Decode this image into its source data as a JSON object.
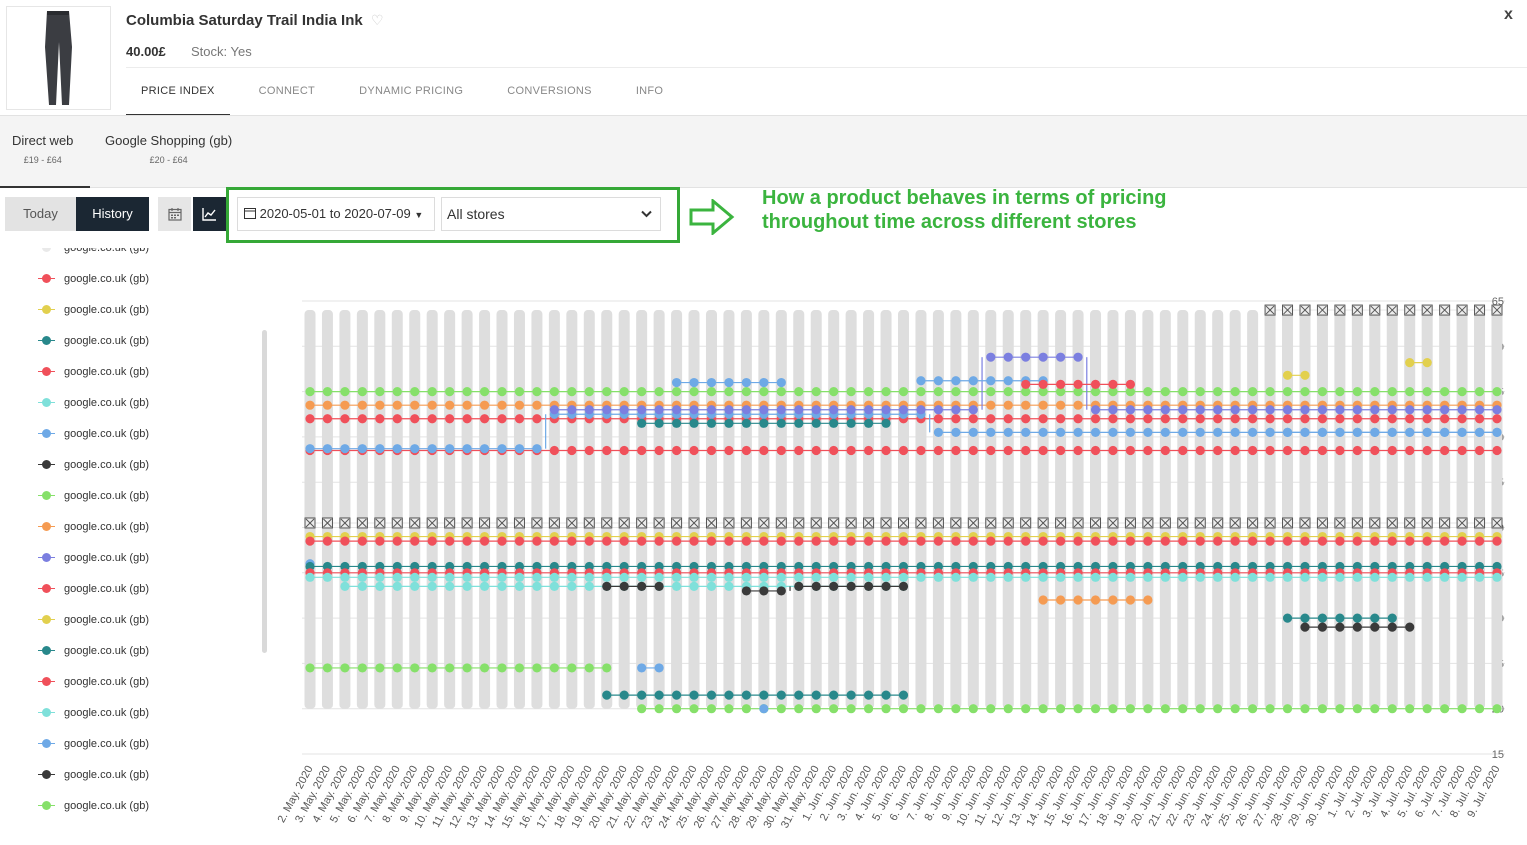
{
  "product": {
    "title": "Columbia Saturday Trail India Ink",
    "price": "40.00£",
    "stock": "Stock: Yes",
    "close_label": "x"
  },
  "tabs": [
    "PRICE INDEX",
    "CONNECT",
    "DYNAMIC PRICING",
    "CONVERSIONS",
    "INFO"
  ],
  "channels": [
    {
      "name": "Direct web",
      "range": "£19 - £64"
    },
    {
      "name": "Google Shopping (gb)",
      "range": "£20 - £64"
    }
  ],
  "controls": {
    "today_label": "Today",
    "history_label": "History",
    "date_range": "2020-05-01 to 2020-07-09",
    "store_filter": "All stores"
  },
  "annotation": {
    "line1": "How a product behaves in terms of pricing",
    "line2": "throughout time across different stores"
  },
  "legend": {
    "items": [
      {
        "label": "google.co.uk (gb)",
        "color": "#e9e9e9"
      },
      {
        "label": "google.co.uk (gb)",
        "color": "#f0505a"
      },
      {
        "label": "google.co.uk (gb)",
        "color": "#e2d04e"
      },
      {
        "label": "google.co.uk (gb)",
        "color": "#28888b"
      },
      {
        "label": "google.co.uk (gb)",
        "color": "#f0505a"
      },
      {
        "label": "google.co.uk (gb)",
        "color": "#7fe0da"
      },
      {
        "label": "google.co.uk (gb)",
        "color": "#6ea9e6"
      },
      {
        "label": "google.co.uk (gb)",
        "color": "#3a3a3a"
      },
      {
        "label": "google.co.uk (gb)",
        "color": "#86e06a"
      },
      {
        "label": "google.co.uk (gb)",
        "color": "#f59b52"
      },
      {
        "label": "google.co.uk (gb)",
        "color": "#7b7fe0"
      },
      {
        "label": "google.co.uk (gb)",
        "color": "#f0505a"
      },
      {
        "label": "google.co.uk (gb)",
        "color": "#e2d04e"
      },
      {
        "label": "google.co.uk (gb)",
        "color": "#28888b"
      },
      {
        "label": "google.co.uk (gb)",
        "color": "#f0505a"
      },
      {
        "label": "google.co.uk (gb)",
        "color": "#7fe0da"
      },
      {
        "label": "google.co.uk (gb)",
        "color": "#6ea9e6"
      },
      {
        "label": "google.co.uk (gb)",
        "color": "#3a3a3a"
      },
      {
        "label": "google.co.uk (gb)",
        "color": "#86e06a"
      }
    ]
  },
  "chart_data": {
    "type": "line",
    "y_ticks": [
      15,
      20,
      25,
      30,
      35,
      40,
      45,
      50,
      55,
      60,
      65
    ],
    "ylim": [
      15,
      65
    ],
    "x": [
      "2. May. 2020",
      "3. May. 2020",
      "4. May. 2020",
      "5. May. 2020",
      "6. May. 2020",
      "7. May. 2020",
      "8. May. 2020",
      "9. May. 2020",
      "10. May. 2020",
      "11. May. 2020",
      "12. May. 2020",
      "13. May. 2020",
      "14. May. 2020",
      "15. May. 2020",
      "16. May. 2020",
      "17. May. 2020",
      "18. May. 2020",
      "19. May. 2020",
      "20. May. 2020",
      "21. May. 2020",
      "22. May. 2020",
      "23. May. 2020",
      "24. May. 2020",
      "25. May. 2020",
      "26. May. 2020",
      "27. May. 2020",
      "28. May. 2020",
      "29. May. 2020",
      "30. May. 2020",
      "31. May. 2020",
      "1. Jun. 2020",
      "2. Jun. 2020",
      "3. Jun. 2020",
      "4. Jun. 2020",
      "5. Jun. 2020",
      "6. Jun. 2020",
      "7. Jun. 2020",
      "8. Jun. 2020",
      "9. Jun. 2020",
      "10. Jun. 2020",
      "11. Jun. 2020",
      "12. Jun. 2020",
      "13. Jun. 2020",
      "14. Jun. 2020",
      "15. Jun. 2020",
      "16. Jun. 2020",
      "17. Jun. 2020",
      "18. Jun. 2020",
      "19. Jun. 2020",
      "20. Jun. 2020",
      "21. Jun. 2020",
      "22. Jun. 2020",
      "23. Jun. 2020",
      "24. Jun. 2020",
      "25. Jun. 2020",
      "26. Jun. 2020",
      "27. Jun. 2020",
      "28. Jun. 2020",
      "29. Jun. 2020",
      "30. Jun. 2020",
      "1. Jul. 2020",
      "2. Jul. 2020",
      "3. Jul. 2020",
      "4. Jul. 2020",
      "5. Jul. 2020",
      "6. Jul. 2020",
      "7. Jul. 2020",
      "8. Jul. 2020",
      "9. Jul. 2020"
    ],
    "range_band": {
      "color": "#dedede",
      "low": 20,
      "high": 64
    },
    "series": [
      {
        "color": "#86e06a",
        "segments": [
          {
            "from": 0,
            "to": 68,
            "value": 55
          }
        ]
      },
      {
        "color": "#f59b52",
        "segments": [
          {
            "from": 0,
            "to": 68,
            "value": 53.5
          }
        ]
      },
      {
        "color": "#f0505a",
        "segments": [
          {
            "from": 0,
            "to": 68,
            "value": 52
          }
        ]
      },
      {
        "color": "#f0505a",
        "segments": [
          {
            "from": 0,
            "to": 68,
            "value": 48.5
          }
        ]
      },
      {
        "color": "#6ea9e6",
        "segments": [
          {
            "from": 0,
            "to": 13,
            "value": 48.7
          },
          {
            "from": 14,
            "to": 35,
            "value": 52.5
          },
          {
            "from": 36,
            "to": 68,
            "value": 50.5
          }
        ]
      },
      {
        "color": "#7b7fe0",
        "segments": [
          {
            "from": 14,
            "to": 38,
            "value": 53
          },
          {
            "from": 39,
            "to": 44,
            "value": 58.8
          },
          {
            "from": 45,
            "to": 68,
            "value": 53
          }
        ]
      },
      {
        "color": "#28888b",
        "segments": [
          {
            "from": 19,
            "to": 33,
            "value": 51.5
          }
        ]
      },
      {
        "color": "#6ea9e6",
        "segments": [
          {
            "from": 21,
            "to": 27,
            "value": 56
          },
          {
            "from": 35,
            "to": 42,
            "value": 56.2
          },
          {
            "from": 55,
            "to": 68,
            "value": 50.5
          }
        ]
      },
      {
        "color": "#f0505a",
        "segments": [
          {
            "from": 41,
            "to": 47,
            "value": 55.8
          }
        ]
      },
      {
        "color": "#6ea9e6",
        "segments": [
          {
            "from": 0,
            "to": 0,
            "value": 36
          },
          {
            "from": 55,
            "to": 55,
            "value": 64
          }
        ]
      },
      {
        "color": "#e9e9e9",
        "segments": [
          {
            "from": 0,
            "to": 68,
            "value": 40.5
          },
          {
            "from": 55,
            "to": 68,
            "value": 64
          }
        ]
      },
      {
        "color": "#e2d04e",
        "segments": [
          {
            "from": 0,
            "to": 68,
            "value": 39
          },
          {
            "from": 56,
            "to": 57,
            "value": 56.8
          },
          {
            "from": 63,
            "to": 64,
            "value": 58.2
          }
        ]
      },
      {
        "color": "#f0505a",
        "segments": [
          {
            "from": 0,
            "to": 68,
            "value": 38.5
          }
        ]
      },
      {
        "color": "#28888b",
        "segments": [
          {
            "from": 0,
            "to": 68,
            "value": 35.7
          },
          {
            "from": 56,
            "to": 62,
            "value": 30
          }
        ]
      },
      {
        "color": "#f0505a",
        "segments": [
          {
            "from": 0,
            "to": 68,
            "value": 35
          }
        ]
      },
      {
        "color": "#7fe0da",
        "segments": [
          {
            "from": 0,
            "to": 68,
            "value": 34.5
          }
        ]
      },
      {
        "color": "#7fe0da",
        "segments": [
          {
            "from": 2,
            "to": 34,
            "value": 33.5
          }
        ]
      },
      {
        "color": "#3a3a3a",
        "segments": [
          {
            "from": 17,
            "to": 20,
            "value": 33.5
          },
          {
            "from": 25,
            "to": 27,
            "value": 33
          },
          {
            "from": 28,
            "to": 34,
            "value": 33.5
          },
          {
            "from": 57,
            "to": 63,
            "value": 29
          }
        ]
      },
      {
        "color": "#f59b52",
        "segments": [
          {
            "from": 42,
            "to": 48,
            "value": 32
          }
        ]
      },
      {
        "color": "#86e06a",
        "segments": [
          {
            "from": 0,
            "to": 17,
            "value": 24.5
          },
          {
            "from": 19,
            "to": 68,
            "value": 20
          }
        ]
      },
      {
        "color": "#6ea9e6",
        "segments": [
          {
            "from": 19,
            "to": 20,
            "value": 24.5
          },
          {
            "from": 26,
            "to": 26,
            "value": 20
          }
        ]
      },
      {
        "color": "#28888b",
        "segments": [
          {
            "from": 17,
            "to": 34,
            "value": 21.5
          }
        ]
      }
    ]
  }
}
